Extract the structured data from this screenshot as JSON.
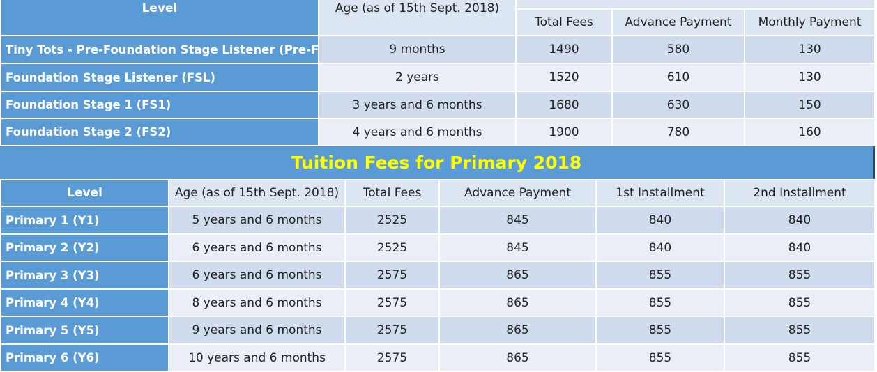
{
  "preschool": {
    "headers": {
      "level": "Level",
      "age": "Age (as of 15th Sept. 2018)",
      "total": "Total Fees",
      "advance": "Advance Payment",
      "monthly": "Monthly Payment"
    },
    "rows": [
      {
        "level": "Tiny Tots - Pre-Foundation Stage Listener (Pre-FSL)",
        "age": "9 months",
        "total": "1490",
        "advance": "580",
        "monthly": "130"
      },
      {
        "level": "Foundation Stage Listener (FSL)",
        "age": "2 years",
        "total": "1520",
        "advance": "610",
        "monthly": "130"
      },
      {
        "level": "Foundation Stage 1 (FS1)",
        "age": "3 years and 6 months",
        "total": "1680",
        "advance": "630",
        "monthly": "150"
      },
      {
        "level": "Foundation Stage 2 (FS2)",
        "age": "4 years and 6 months",
        "total": "1900",
        "advance": "780",
        "monthly": "160"
      }
    ]
  },
  "primary": {
    "title": "Tuition Fees for Primary 2018",
    "headers": {
      "level": "Level",
      "age": "Age (as of 15th Sept. 2018)",
      "total": "Total Fees",
      "advance": "Advance Payment",
      "first": "1st Installment",
      "second": "2nd Installment"
    },
    "rows": [
      {
        "level": "Primary 1 (Y1)",
        "age": "5 years and 6 months",
        "total": "2525",
        "advance": "845",
        "first": "840",
        "second": "840"
      },
      {
        "level": "Primary 2 (Y2)",
        "age": "6 years and 6 months",
        "total": "2525",
        "advance": "845",
        "first": "840",
        "second": "840"
      },
      {
        "level": "Primary 3 (Y3)",
        "age": "6 years and 6 months",
        "total": "2575",
        "advance": "865",
        "first": "855",
        "second": "855"
      },
      {
        "level": "Primary 4 (Y4)",
        "age": "8 years and 6 months",
        "total": "2575",
        "advance": "865",
        "first": "855",
        "second": "855"
      },
      {
        "level": "Primary 5 (Y5)",
        "age": "9 years and 6 months",
        "total": "2575",
        "advance": "865",
        "first": "855",
        "second": "855"
      },
      {
        "level": "Primary 6 (Y6)",
        "age": "10 years and 6 months",
        "total": "2575",
        "advance": "865",
        "first": "855",
        "second": "855"
      }
    ]
  }
}
